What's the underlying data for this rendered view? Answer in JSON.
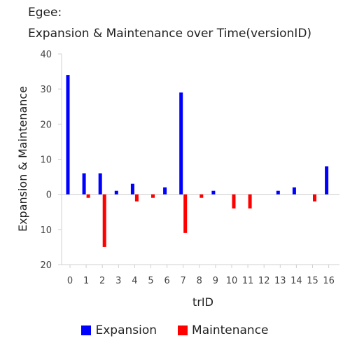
{
  "chart_data": {
    "type": "bar",
    "title": "Egee:",
    "subtitle": "Expansion & Maintenance over Time(versionID)",
    "xlabel": "trID",
    "ylabel": "Expansion & Maintenance",
    "categories": [
      "0",
      "1",
      "2",
      "3",
      "4",
      "5",
      "6",
      "7",
      "8",
      "9",
      "10",
      "11",
      "12",
      "13",
      "14",
      "15",
      "16"
    ],
    "ylim": [
      -20,
      40
    ],
    "yticks": [
      40,
      30,
      20,
      10,
      0,
      -10,
      -20
    ],
    "ytick_labels": [
      "40",
      "30",
      "20",
      "10",
      "0",
      "10",
      "20"
    ],
    "grid": false,
    "legend_position": "bottom",
    "series": [
      {
        "name": "Expansion",
        "color": "#0000ff",
        "values": [
          34,
          6,
          6,
          1,
          3,
          0,
          2,
          29,
          0,
          1,
          0,
          0,
          0,
          1,
          2,
          0,
          8
        ]
      },
      {
        "name": "Maintenance",
        "color": "#ff0000",
        "values": [
          0,
          -1,
          -15,
          0,
          -2,
          -1,
          0,
          -11,
          -1,
          0,
          -4,
          -4,
          0,
          0,
          0,
          -2,
          0
        ]
      }
    ]
  }
}
